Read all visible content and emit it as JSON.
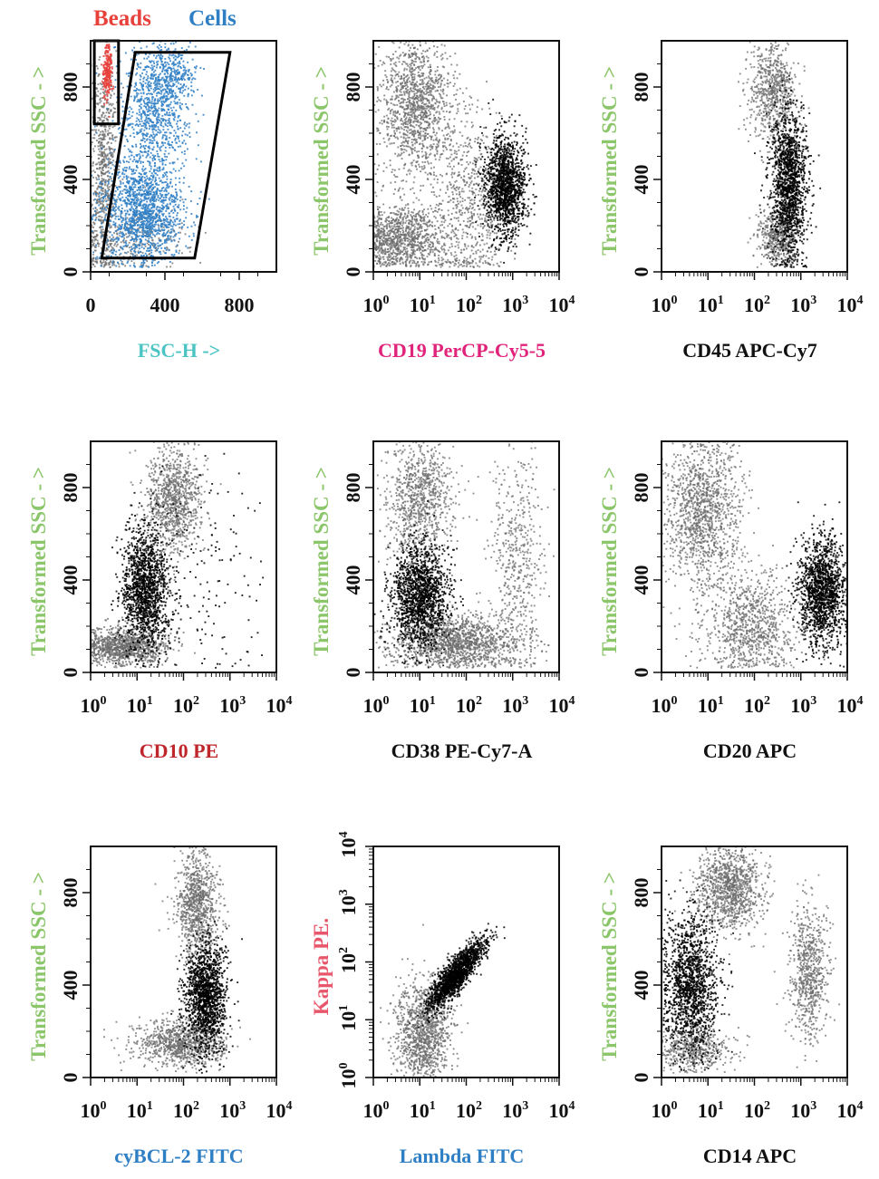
{
  "colors": {
    "ssc_label": "#8cc66a",
    "gray_cells": "#6b6b6b",
    "black_cells": "#000000",
    "beads": "#e8413c",
    "cells_blue": "#2f7fc4",
    "fsc_label": "#4cc4c4",
    "cd19_label": "#e0237b",
    "cd10_label": "#c0272d",
    "cybcl2_label": "#2f7fc4",
    "lambda_label": "#2f7fc4",
    "kappa_label": "#e8566b",
    "black_label": "#111111"
  },
  "chart_data": [
    {
      "type": "scatter",
      "scale_x": "linear",
      "scale_y": "linear",
      "xlim": [
        0,
        1000
      ],
      "ylim": [
        0,
        1000
      ],
      "xticks": [
        "0",
        "400",
        "800"
      ],
      "xtick_values": [
        0,
        400,
        800
      ],
      "yticks": [
        "0",
        "400",
        "800"
      ],
      "ytick_values": [
        0,
        400,
        800
      ],
      "xlabel": "FSC-H ->",
      "xlabel_color": "fsc_label",
      "ylabel": "Transformed SSC - >",
      "ylabel_color": "ssc_label",
      "legend": [
        {
          "name": "Beads",
          "color": "beads"
        },
        {
          "name": "Cells",
          "color": "cells_blue"
        }
      ],
      "legend_placement": "top",
      "populations": [
        {
          "color": "gray_cells",
          "cx": 70,
          "cy": 450,
          "sx": 35,
          "sy": 260,
          "n": 700
        },
        {
          "color": "gray_cells",
          "cx": 250,
          "cy": 150,
          "sx": 150,
          "sy": 70,
          "n": 300
        },
        {
          "color": "cells_blue",
          "cx": 280,
          "cy": 260,
          "sx": 110,
          "sy": 110,
          "n": 1400
        },
        {
          "color": "cells_blue",
          "cx": 340,
          "cy": 680,
          "sx": 90,
          "sy": 170,
          "n": 900
        },
        {
          "color": "cells_blue",
          "cx": 430,
          "cy": 850,
          "sx": 70,
          "sy": 70,
          "n": 300
        },
        {
          "color": "beads",
          "cx": 90,
          "cy": 870,
          "sx": 12,
          "sy": 55,
          "n": 250
        }
      ],
      "gates": [
        {
          "points": [
            [
              20,
              640
            ],
            [
              150,
              640
            ],
            [
              150,
              1000
            ],
            [
              20,
              1000
            ]
          ]
        },
        {
          "points": [
            [
              60,
              60
            ],
            [
              560,
              60
            ],
            [
              750,
              950
            ],
            [
              240,
              950
            ]
          ]
        }
      ]
    },
    {
      "type": "scatter",
      "scale_x": "log",
      "scale_y": "linear",
      "xlim": [
        1,
        10000
      ],
      "ylim": [
        0,
        1000
      ],
      "xtick_labels": [
        [
          "10",
          "0"
        ],
        [
          "10",
          "1"
        ],
        [
          "10",
          "2"
        ],
        [
          "10",
          "3"
        ],
        [
          "10",
          "4"
        ]
      ],
      "yticks": [
        "0",
        "400",
        "800"
      ],
      "ytick_values": [
        0,
        400,
        800
      ],
      "xlabel": "CD19 PerCP-Cy5-5",
      "xlabel_color": "cd19_label",
      "ylabel": "Transformed SSC - >",
      "ylabel_color": "ssc_label",
      "populations": [
        {
          "color": "gray_cells",
          "cx": 8,
          "cy": 720,
          "sx": 0.4,
          "sy": 150,
          "n": 1300
        },
        {
          "color": "gray_cells",
          "cx": 4,
          "cy": 150,
          "sx": 0.5,
          "sy": 70,
          "n": 1100
        },
        {
          "color": "gray_cells",
          "cx": 120,
          "cy": 300,
          "sx": 0.35,
          "sy": 200,
          "n": 600
        },
        {
          "color": "black_cells",
          "cx": 700,
          "cy": 370,
          "sx": 0.22,
          "sy": 110,
          "n": 1500
        }
      ]
    },
    {
      "type": "scatter",
      "scale_x": "log",
      "scale_y": "linear",
      "xlim": [
        1,
        10000
      ],
      "ylim": [
        0,
        1000
      ],
      "xtick_labels": [
        [
          "10",
          "0"
        ],
        [
          "10",
          "1"
        ],
        [
          "10",
          "2"
        ],
        [
          "10",
          "3"
        ],
        [
          "10",
          "4"
        ]
      ],
      "yticks": [
        "0",
        "400",
        "800"
      ],
      "ytick_values": [
        0,
        400,
        800
      ],
      "xlabel": "CD45 APC-Cy7",
      "xlabel_color": "black_label",
      "ylabel": "Transformed SSC - >",
      "ylabel_color": "ssc_label",
      "populations": [
        {
          "color": "gray_cells",
          "cx": 250,
          "cy": 780,
          "sx": 0.25,
          "sy": 110,
          "n": 700
        },
        {
          "color": "gray_cells",
          "cx": 300,
          "cy": 150,
          "sx": 0.2,
          "sy": 60,
          "n": 500
        },
        {
          "color": "black_cells",
          "cx": 550,
          "cy": 380,
          "sx": 0.2,
          "sy": 160,
          "n": 1500
        }
      ]
    },
    {
      "type": "scatter",
      "scale_x": "log",
      "scale_y": "linear",
      "xlim": [
        1,
        10000
      ],
      "ylim": [
        0,
        1000
      ],
      "xtick_labels": [
        [
          "10",
          "0"
        ],
        [
          "10",
          "1"
        ],
        [
          "10",
          "2"
        ],
        [
          "10",
          "3"
        ],
        [
          "10",
          "4"
        ]
      ],
      "yticks": [
        "0",
        "400",
        "800"
      ],
      "ytick_values": [
        0,
        400,
        800
      ],
      "xlabel": "CD10 PE",
      "xlabel_color": "cd10_label",
      "ylabel": "Transformed SSC - >",
      "ylabel_color": "ssc_label",
      "populations": [
        {
          "color": "gray_cells",
          "cx": 60,
          "cy": 760,
          "sx": 0.3,
          "sy": 120,
          "n": 1000
        },
        {
          "color": "gray_cells",
          "cx": 5,
          "cy": 110,
          "sx": 0.5,
          "sy": 40,
          "n": 1100
        },
        {
          "color": "black_cells",
          "cx": 15,
          "cy": 360,
          "sx": 0.25,
          "sy": 130,
          "n": 1500
        },
        {
          "color": "black_cells",
          "cx": 300,
          "cy": 400,
          "sx": 0.6,
          "sy": 250,
          "n": 150
        }
      ]
    },
    {
      "type": "scatter",
      "scale_x": "log",
      "scale_y": "linear",
      "xlim": [
        1,
        10000
      ],
      "ylim": [
        0,
        1000
      ],
      "xtick_labels": [
        [
          "10",
          "0"
        ],
        [
          "10",
          "1"
        ],
        [
          "10",
          "2"
        ],
        [
          "10",
          "3"
        ],
        [
          "10",
          "4"
        ]
      ],
      "yticks": [
        "0",
        "400",
        "800"
      ],
      "ytick_values": [
        0,
        400,
        800
      ],
      "xlabel": "CD38 PE-Cy7-A",
      "xlabel_color": "black_label",
      "ylabel": "Transformed SSC - >",
      "ylabel_color": "ssc_label",
      "populations": [
        {
          "color": "gray_cells",
          "cx": 10,
          "cy": 760,
          "sx": 0.35,
          "sy": 140,
          "n": 900
        },
        {
          "color": "gray_cells",
          "cx": 60,
          "cy": 130,
          "sx": 0.7,
          "sy": 60,
          "n": 1500
        },
        {
          "color": "gray_cells",
          "cx": 1200,
          "cy": 500,
          "sx": 0.3,
          "sy": 250,
          "n": 500
        },
        {
          "color": "black_cells",
          "cx": 10,
          "cy": 330,
          "sx": 0.3,
          "sy": 110,
          "n": 1600
        }
      ]
    },
    {
      "type": "scatter",
      "scale_x": "log",
      "scale_y": "linear",
      "xlim": [
        1,
        10000
      ],
      "ylim": [
        0,
        1000
      ],
      "xtick_labels": [
        [
          "10",
          "0"
        ],
        [
          "10",
          "1"
        ],
        [
          "10",
          "2"
        ],
        [
          "10",
          "3"
        ],
        [
          "10",
          "4"
        ]
      ],
      "yticks": [
        "0",
        "400",
        "800"
      ],
      "ytick_values": [
        0,
        400,
        800
      ],
      "xlabel": "CD20 APC",
      "xlabel_color": "black_label",
      "ylabel": "Transformed SSC - >",
      "ylabel_color": "ssc_label",
      "populations": [
        {
          "color": "gray_cells",
          "cx": 8,
          "cy": 700,
          "sx": 0.4,
          "sy": 170,
          "n": 1300
        },
        {
          "color": "gray_cells",
          "cx": 80,
          "cy": 200,
          "sx": 0.5,
          "sy": 110,
          "n": 900
        },
        {
          "color": "black_cells",
          "cx": 3000,
          "cy": 350,
          "sx": 0.25,
          "sy": 120,
          "n": 1500
        }
      ]
    },
    {
      "type": "scatter",
      "scale_x": "log",
      "scale_y": "linear",
      "xlim": [
        1,
        10000
      ],
      "ylim": [
        0,
        1000
      ],
      "xtick_labels": [
        [
          "10",
          "0"
        ],
        [
          "10",
          "1"
        ],
        [
          "10",
          "2"
        ],
        [
          "10",
          "3"
        ],
        [
          "10",
          "4"
        ]
      ],
      "yticks": [
        "0",
        "400",
        "800"
      ],
      "ytick_values": [
        0,
        400,
        800
      ],
      "xlabel": "cyBCL-2 FITC",
      "xlabel_color": "cybcl2_label",
      "ylabel": "Transformed SSC - >",
      "ylabel_color": "ssc_label",
      "populations": [
        {
          "color": "gray_cells",
          "cx": 200,
          "cy": 750,
          "sx": 0.22,
          "sy": 120,
          "n": 900
        },
        {
          "color": "gray_cells",
          "cx": 80,
          "cy": 150,
          "sx": 0.45,
          "sy": 50,
          "n": 900
        },
        {
          "color": "black_cells",
          "cx": 300,
          "cy": 350,
          "sx": 0.22,
          "sy": 120,
          "n": 1500
        }
      ]
    },
    {
      "type": "scatter",
      "scale_x": "log",
      "scale_y": "log",
      "xlim": [
        1,
        10000
      ],
      "ylim": [
        1,
        10000
      ],
      "xtick_labels": [
        [
          "10",
          "0"
        ],
        [
          "10",
          "1"
        ],
        [
          "10",
          "2"
        ],
        [
          "10",
          "3"
        ],
        [
          "10",
          "4"
        ]
      ],
      "ytick_labels": [
        [
          "10",
          "0"
        ],
        [
          "10",
          "1"
        ],
        [
          "10",
          "2"
        ],
        [
          "10",
          "3"
        ],
        [
          "10",
          "4"
        ]
      ],
      "xlabel": "Lambda FITC",
      "xlabel_color": "lambda_label",
      "ylabel": "Kappa PE.",
      "ylabel_color": "kappa_label",
      "populations": [
        {
          "color": "gray_cells",
          "cx": 12,
          "cy": 6,
          "sx": 0.3,
          "sy": 0.45,
          "n": 1200
        },
        {
          "color": "black_cells",
          "cx": 60,
          "cy": 60,
          "sx": 0.3,
          "sy": 0.3,
          "rho": 0.85,
          "n": 1600
        }
      ]
    },
    {
      "type": "scatter",
      "scale_x": "log",
      "scale_y": "linear",
      "xlim": [
        1,
        10000
      ],
      "ylim": [
        0,
        1000
      ],
      "xtick_labels": [
        [
          "10",
          "0"
        ],
        [
          "10",
          "1"
        ],
        [
          "10",
          "2"
        ],
        [
          "10",
          "3"
        ],
        [
          "10",
          "4"
        ]
      ],
      "yticks": [
        "0",
        "400",
        "800"
      ],
      "ytick_values": [
        0,
        400,
        800
      ],
      "xlabel": "CD14 APC",
      "xlabel_color": "black_label",
      "ylabel": "Transformed SSC - >",
      "ylabel_color": "ssc_label",
      "populations": [
        {
          "color": "gray_cells",
          "cx": 30,
          "cy": 820,
          "sx": 0.35,
          "sy": 90,
          "n": 1100
        },
        {
          "color": "gray_cells",
          "cx": 1500,
          "cy": 450,
          "sx": 0.2,
          "sy": 150,
          "n": 700
        },
        {
          "color": "gray_cells",
          "cx": 5,
          "cy": 120,
          "sx": 0.4,
          "sy": 50,
          "n": 500
        },
        {
          "color": "black_cells",
          "cx": 4,
          "cy": 400,
          "sx": 0.3,
          "sy": 150,
          "n": 1500
        }
      ]
    }
  ]
}
